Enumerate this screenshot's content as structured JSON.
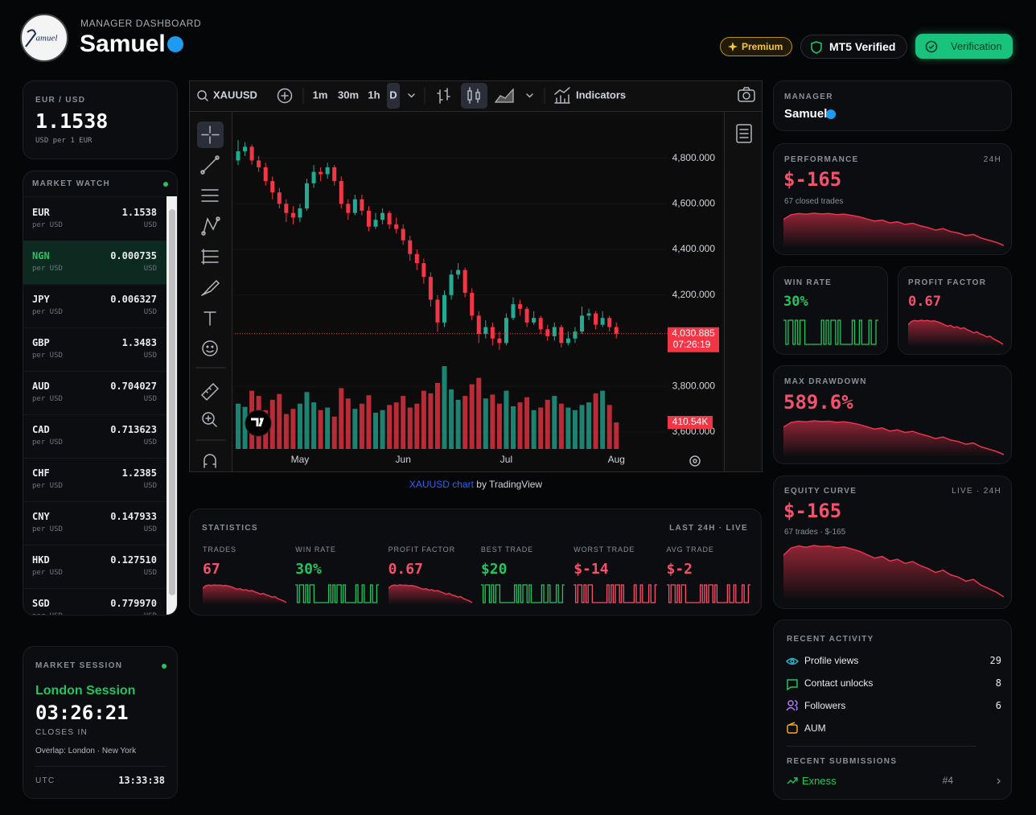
{
  "header": {
    "logo": "amuel",
    "kicker": "MANAGER DASHBOARD",
    "name": "Samuel",
    "badges": {
      "premium": "Premium",
      "mt5": "MT5 Verified",
      "verification": "Verification"
    }
  },
  "fx_card": {
    "pair": "EUR / USD",
    "rate": "1.1538",
    "note": "USD per 1 EUR"
  },
  "market_watch": {
    "title": "MARKET WATCH",
    "highlighted_row": 1,
    "rows": [
      {
        "code": "EUR",
        "rate": "1.1538",
        "per": "per USD",
        "unit": "USD"
      },
      {
        "code": "NGN",
        "rate": "0.000735",
        "per": "per USD",
        "unit": "USD"
      },
      {
        "code": "JPY",
        "rate": "0.006327",
        "per": "per USD",
        "unit": "USD"
      },
      {
        "code": "GBP",
        "rate": "1.3483",
        "per": "per USD",
        "unit": "USD"
      },
      {
        "code": "AUD",
        "rate": "0.704027",
        "per": "per USD",
        "unit": "USD"
      },
      {
        "code": "CAD",
        "rate": "0.713623",
        "per": "per USD",
        "unit": "USD"
      },
      {
        "code": "CHF",
        "rate": "1.2385",
        "per": "per USD",
        "unit": "USD"
      },
      {
        "code": "CNY",
        "rate": "0.147933",
        "per": "per USD",
        "unit": "USD"
      },
      {
        "code": "HKD",
        "rate": "0.127510",
        "per": "per USD",
        "unit": "USD"
      },
      {
        "code": "SGD",
        "rate": "0.779970",
        "per": "per USD",
        "unit": "USD"
      }
    ]
  },
  "market_session": {
    "title": "MARKET SESSION",
    "session": "London Session",
    "countdown": "03:26:21",
    "caption": "CLOSES IN",
    "overlap": "Overlap: London · New York",
    "tz": "UTC",
    "time": "13:33:38"
  },
  "tradingview": {
    "symbol": "XAUUSD",
    "intervals": [
      "1m",
      "30m",
      "1h",
      "D"
    ],
    "indicators": "Indicators",
    "credit_link": "XAUUSD chart",
    "credit_by": "by TradingView"
  },
  "price_chart": {
    "type": "candlestick",
    "categories": [
      null,
      null,
      null,
      null,
      null,
      null,
      null,
      null,
      null,
      "May",
      null,
      null,
      null,
      null,
      null,
      null,
      null,
      null,
      null,
      null,
      null,
      null,
      null,
      null,
      "Jun",
      null,
      null,
      null,
      null,
      null,
      null,
      null,
      null,
      null,
      null,
      null,
      null,
      null,
      null,
      "Jul",
      null,
      null,
      null,
      null,
      null,
      null,
      null,
      null,
      null,
      null,
      null,
      null,
      null,
      null,
      null,
      "Aug"
    ],
    "open": [
      4790,
      4830,
      4850,
      4790,
      4760,
      4700,
      4650,
      4600,
      4560,
      4540,
      4580,
      4690,
      4740,
      4730,
      4760,
      4700,
      4600,
      4560,
      4620,
      4570,
      4500,
      4530,
      4560,
      4510,
      4490,
      4440,
      4380,
      4340,
      4280,
      4180,
      4080,
      4200,
      4290,
      4310,
      4210,
      4110,
      4030,
      4060,
      4010,
      3990,
      4100,
      4160,
      4140,
      4080,
      4100,
      4050,
      4020,
      4060,
      3990,
      4010,
      4040,
      4110,
      4120,
      4070,
      4100,
      4060
    ],
    "high": [
      4880,
      4870,
      4860,
      4810,
      4780,
      4720,
      4670,
      4620,
      4590,
      4600,
      4710,
      4770,
      4760,
      4780,
      4770,
      4720,
      4620,
      4640,
      4640,
      4590,
      4560,
      4580,
      4570,
      4540,
      4510,
      4460,
      4400,
      4360,
      4300,
      4200,
      4220,
      4310,
      4340,
      4320,
      4230,
      4130,
      4090,
      4080,
      4040,
      4120,
      4190,
      4180,
      4150,
      4130,
      4110,
      4070,
      4080,
      4070,
      4040,
      4060,
      4150,
      4140,
      4130,
      4130,
      4110,
      4080
    ],
    "low": [
      4770,
      4810,
      4770,
      4740,
      4680,
      4620,
      4580,
      4520,
      4510,
      4520,
      4570,
      4670,
      4700,
      4710,
      4680,
      4580,
      4530,
      4550,
      4550,
      4480,
      4490,
      4510,
      4490,
      4470,
      4420,
      4350,
      4310,
      4250,
      4150,
      4040,
      4060,
      4180,
      4270,
      4190,
      4090,
      3990,
      4010,
      3980,
      3960,
      3980,
      4090,
      4110,
      4060,
      4070,
      4030,
      4000,
      4000,
      3970,
      3980,
      3990,
      4030,
      4090,
      4050,
      4060,
      4040,
      4010
    ],
    "close": [
      4830,
      4850,
      4790,
      4760,
      4700,
      4650,
      4600,
      4560,
      4540,
      4580,
      4690,
      4740,
      4730,
      4760,
      4700,
      4600,
      4560,
      4620,
      4570,
      4500,
      4530,
      4560,
      4510,
      4490,
      4440,
      4380,
      4340,
      4280,
      4180,
      4080,
      4200,
      4290,
      4310,
      4210,
      4110,
      4030,
      4060,
      4010,
      3990,
      4100,
      4160,
      4140,
      4080,
      4100,
      4050,
      4020,
      4060,
      3990,
      4010,
      4040,
      4110,
      4120,
      4070,
      4100,
      4060,
      4030.885
    ],
    "close_label": "4,030.885",
    "countdown": "07:26:19",
    "volume": [
      700,
      650,
      900,
      820,
      600,
      760,
      850,
      540,
      620,
      700,
      880,
      720,
      600,
      640,
      500,
      940,
      780,
      620,
      700,
      830,
      560,
      600,
      680,
      720,
      820,
      640,
      700,
      900,
      860,
      1020,
      1280,
      920,
      760,
      820,
      1000,
      1100,
      780,
      840,
      700,
      900,
      660,
      720,
      800,
      600,
      640,
      760,
      820,
      700,
      640,
      600,
      680,
      720,
      860,
      900,
      680,
      410.54
    ],
    "volume_label": "410.54K",
    "volume_lim": [
      0,
      1468
    ],
    "up_color": "#22ab94",
    "down_color": "#f23645",
    "ylim": [
      3526,
      4989
    ],
    "yticks": [
      {
        "value": 3600,
        "label": "3,600.000"
      },
      {
        "value": 3800,
        "label": "3,800.000"
      },
      {
        "value": 4200,
        "label": "4,200.000"
      },
      {
        "value": 4400,
        "label": "4,400.000"
      },
      {
        "value": 4600,
        "label": "4,600.000"
      },
      {
        "value": 4800,
        "label": "4,800.000"
      }
    ]
  },
  "sparklines": {
    "equity": [
      -20,
      5,
      12,
      8,
      14,
      10,
      12,
      6,
      9,
      2,
      -6,
      -18,
      -30,
      -24,
      -40,
      -34,
      -48,
      -42,
      -56,
      -66,
      -80,
      -72,
      -88,
      -96,
      -110,
      -104,
      -124,
      -136,
      -148,
      -165
    ],
    "outcomes": [
      1,
      0,
      1,
      1,
      0,
      1,
      0,
      1,
      1,
      0,
      0,
      0,
      0,
      0,
      0,
      0,
      1,
      0,
      1,
      0,
      1,
      1,
      0,
      1,
      0,
      0,
      0,
      0,
      0,
      1,
      0,
      0,
      1,
      0,
      0,
      0,
      1,
      0,
      0,
      1
    ]
  },
  "statistics": {
    "title": "STATISTICS",
    "badge": "LAST 24H · LIVE",
    "items": [
      {
        "label": "TRADES",
        "value": "67",
        "color": "#f4516c",
        "spark_type": "area"
      },
      {
        "label": "WIN RATE",
        "value": "30%",
        "color": "#22c55e",
        "spark_type": "step"
      },
      {
        "label": "PROFIT FACTOR",
        "value": "0.67",
        "color": "#f4516c",
        "spark_type": "area"
      },
      {
        "label": "BEST TRADE",
        "value": "$20",
        "color": "#22c55e",
        "spark_type": "step"
      },
      {
        "label": "WORST TRADE",
        "value": "$-14",
        "color": "#f4516c",
        "spark_type": "step"
      },
      {
        "label": "AVG TRADE",
        "value": "$-2",
        "color": "#f4516c",
        "spark_type": "step"
      }
    ]
  },
  "manager_card": {
    "label": "MANAGER",
    "name": "Samuel"
  },
  "performance": {
    "label": "PERFORMANCE",
    "period": "24H",
    "value": "$-165",
    "note": "67 closed trades"
  },
  "win_rate": {
    "label": "WIN RATE",
    "value": "30%"
  },
  "profit_factor": {
    "label": "PROFIT FACTOR",
    "value": "0.67"
  },
  "max_drawdown": {
    "label": "MAX DRAWDOWN",
    "value": "589.6%"
  },
  "equity_curve": {
    "label": "EQUITY CURVE",
    "badge": "LIVE · 24H",
    "value": "$-165",
    "note": "67 trades · $-165"
  },
  "recent_activity": {
    "title": "RECENT ACTIVITY",
    "items": [
      {
        "label": "Profile views",
        "value": "29"
      },
      {
        "label": "Contact unlocks",
        "value": "8"
      },
      {
        "label": "Followers",
        "value": "6"
      },
      {
        "label": "AUM"
      }
    ]
  },
  "recent_submissions": {
    "title": "RECENT SUBMISSIONS",
    "items": [
      {
        "broker": "Exness",
        "rank": "#4"
      }
    ]
  }
}
